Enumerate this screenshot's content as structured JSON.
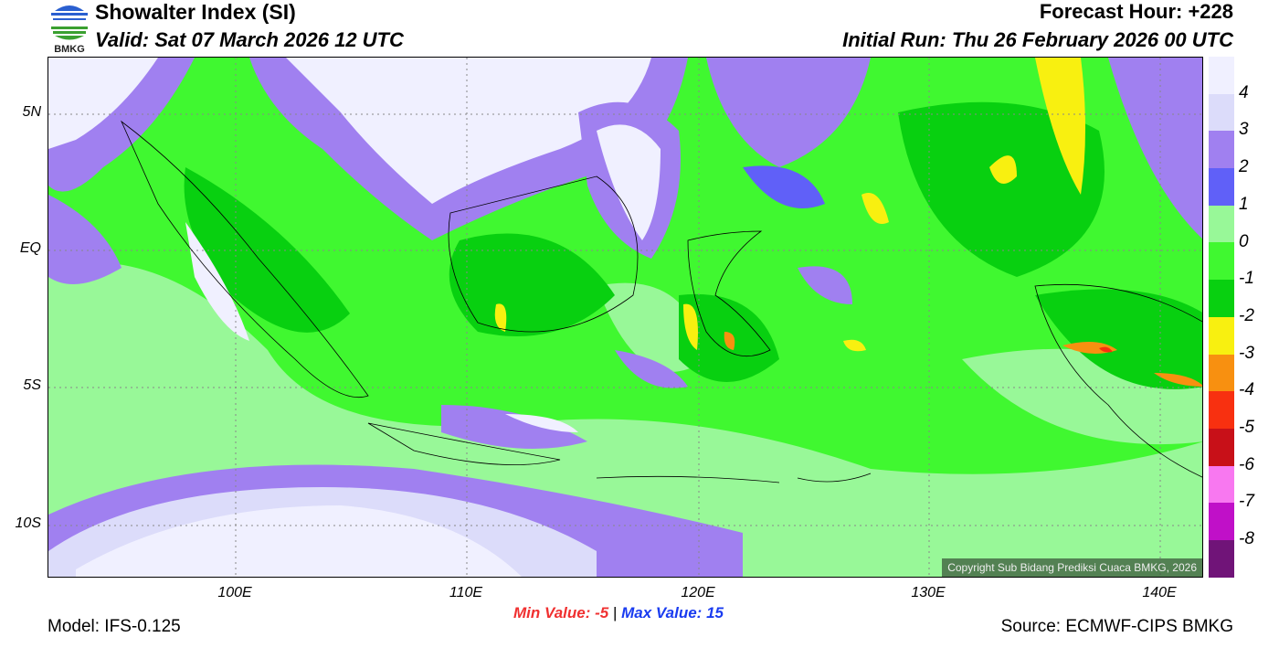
{
  "header": {
    "title": "Showalter Index (SI)",
    "valid": "Valid: Sat 07 March 2026 12 UTC",
    "forecast_hour": "Forecast Hour: +228",
    "initial_run": "Initial Run: Thu 26 February 2026 00 UTC",
    "logo_text": "BMKG"
  },
  "axes": {
    "lat_labels": [
      "5N",
      "EQ",
      "5S",
      "10S"
    ],
    "lon_labels": [
      "100E",
      "110E",
      "120E",
      "130E",
      "140E"
    ]
  },
  "colorbar": {
    "labels": [
      "4",
      "3",
      "2",
      "1",
      "0",
      "-1",
      "-2",
      "-3",
      "-4",
      "-5",
      "-6",
      "-7",
      "-8"
    ],
    "colors": [
      "#f0f0ff",
      "#dcdcfa",
      "#a080f0",
      "#6060f8",
      "#98f898",
      "#40f830",
      "#08d010",
      "#f8f010",
      "#f89010",
      "#f83010",
      "#c81018",
      "#f878f0",
      "#c010c8",
      "#701478"
    ]
  },
  "stats": {
    "min_label": "Min Value:",
    "min_value": "-5",
    "separator": "|",
    "max_label": "Max Value:",
    "max_value": "15"
  },
  "footer": {
    "model": "Model: IFS-0.125",
    "source": "Source: ECMWF-CIPS BMKG",
    "copyright": "Copyright Sub Bidang Prediksi Cuaca BMKG, 2026"
  }
}
